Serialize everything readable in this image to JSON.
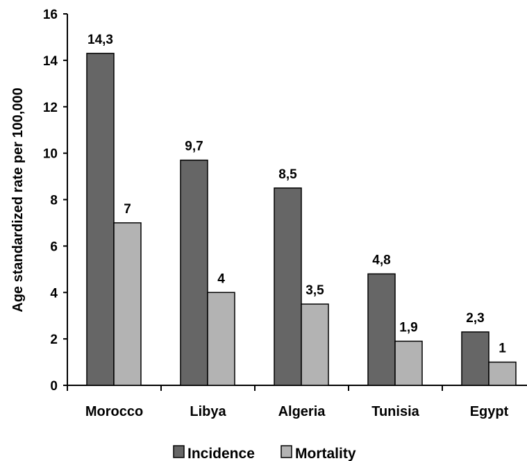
{
  "chart_data": {
    "type": "bar",
    "title": "",
    "xlabel": "",
    "ylabel": "Age standardized rate per 100,000",
    "ylim": [
      0,
      16
    ],
    "yticks": [
      0,
      2,
      4,
      6,
      8,
      10,
      12,
      14,
      16
    ],
    "grid": false,
    "legend_position": "bottom",
    "categories": [
      "Morocco",
      "Libya",
      "Algeria",
      "Tunisia",
      "Egypt"
    ],
    "series": [
      {
        "name": "Incidence",
        "color": "#666666",
        "values": [
          14.3,
          9.7,
          8.5,
          4.8,
          2.3
        ],
        "labels": [
          "14,3",
          "9,7",
          "8,5",
          "4,8",
          "2,3"
        ]
      },
      {
        "name": "Mortality",
        "color": "#b3b3b3",
        "values": [
          7,
          4,
          3.5,
          1.9,
          1
        ],
        "labels": [
          "7",
          "4",
          "3,5",
          "1,9",
          "1"
        ]
      }
    ]
  }
}
